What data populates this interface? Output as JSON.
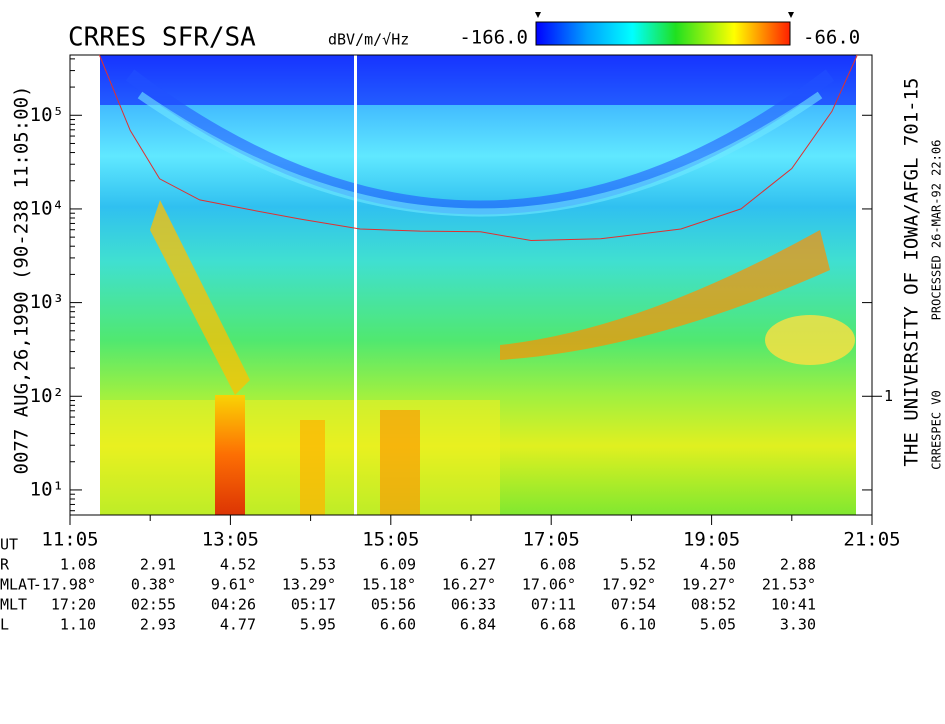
{
  "chart_data": {
    "type": "spectrogram",
    "title": "CRRES SFR/SA",
    "colorbar_label": "dBV/m/√Hz",
    "clim": [
      {
        "value": -166,
        "label": "-166.0"
      },
      {
        "value": -66,
        "label": "-66.0"
      }
    ],
    "ylabel": "0077  AUG,26,1990  (90-238 11:05:00)",
    "yscale": "log",
    "ylim": [
      5.4,
      440000
    ],
    "yticks": [
      {
        "value": 10,
        "label": "10¹"
      },
      {
        "value": 100,
        "label": "10²"
      },
      {
        "value": 1000,
        "label": "10³"
      },
      {
        "value": 10000,
        "label": "10⁴"
      },
      {
        "value": 100000,
        "label": "10⁵"
      }
    ],
    "y2lim": [
      0.054,
      4400
    ],
    "y2ticks": [
      1
    ],
    "xlabel": "UT",
    "xlim": [
      665,
      1265
    ],
    "xticks": [
      {
        "value": 665,
        "label": "11:05"
      },
      {
        "value": 785,
        "label": "13:05"
      },
      {
        "value": 905,
        "label": "15:05"
      },
      {
        "value": 1025,
        "label": "17:05"
      },
      {
        "value": 1145,
        "label": "19:05"
      },
      {
        "value": 1265,
        "label": "21:05"
      }
    ],
    "series": [
      {
        "color": "#e03030",
        "x": [
          687,
          710,
          732,
          762,
          800,
          837,
          882,
          927,
          972,
          1010,
          1062,
          1122,
          1167,
          1205,
          1235,
          1254
        ],
        "values": [
          440000,
          69000,
          21000,
          12500,
          9800,
          7800,
          6100,
          5800,
          5700,
          4600,
          4800,
          6100,
          10000,
          27000,
          110000,
          440000
        ]
      }
    ],
    "ephemeris": [
      {
        "label": "R",
        "values": [
          "1.08",
          "2.91",
          "4.52",
          "5.53",
          "6.09",
          "6.27",
          "6.08",
          "5.52",
          "4.50",
          "2.88"
        ]
      },
      {
        "label": "MLAT",
        "values": [
          "-17.98°",
          "0.38°",
          "9.61°",
          "13.29°",
          "15.18°",
          "16.27°",
          "17.06°",
          "17.92°",
          "19.27°",
          "21.53°"
        ]
      },
      {
        "label": "MLT",
        "values": [
          "17:20",
          "02:55",
          "04:26",
          "05:17",
          "05:56",
          "06:33",
          "07:11",
          "07:54",
          "08:52",
          "10:41"
        ]
      },
      {
        "label": "L",
        "values": [
          "1.10",
          "2.93",
          "4.77",
          "5.95",
          "6.60",
          "6.84",
          "6.68",
          "6.10",
          "5.05",
          "3.30"
        ]
      }
    ],
    "institution": "THE UNIVERSITY OF IOWA/AFGL 701-15",
    "processed": "PROCESSED 26-MAR-92  22:06",
    "software": "CRRESPEC V0"
  }
}
